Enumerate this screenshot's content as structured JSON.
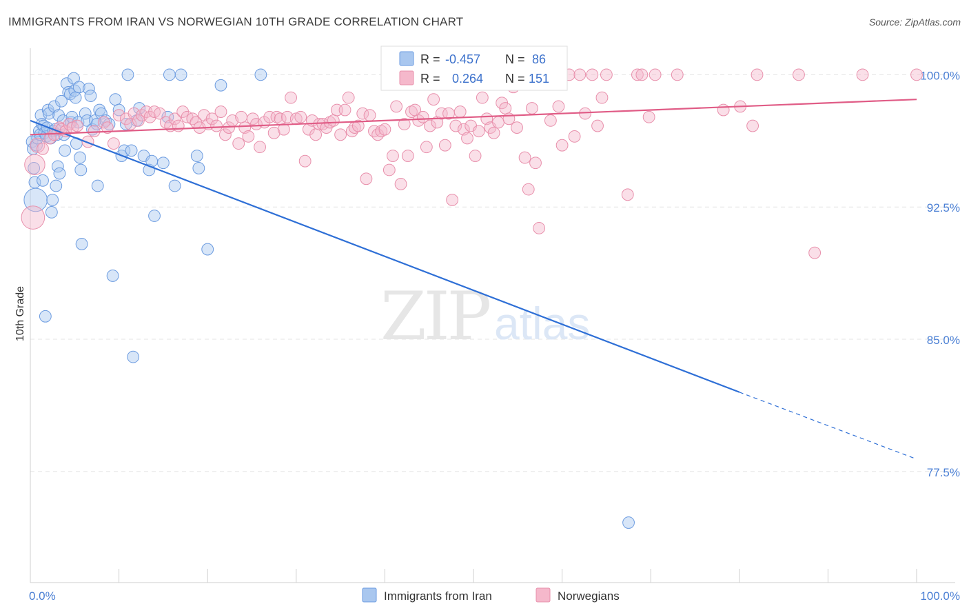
{
  "title": "IMMIGRANTS FROM IRAN VS NORWEGIAN 10TH GRADE CORRELATION CHART",
  "source": "Source: ZipAtlas.com",
  "watermark": {
    "zip": "ZIP",
    "atlas": "atlas"
  },
  "legend": {
    "r_label": "R =",
    "n_label": "N =",
    "series": [
      {
        "name": "Immigrants from Iran",
        "r": "-0.457",
        "n": "86"
      },
      {
        "name": "Norwegians",
        "r": "0.264",
        "n": "151"
      }
    ]
  },
  "colors": {
    "blue_fill": "#a9c7ef",
    "blue_stroke": "#6b9be0",
    "blue_line": "#2e6fd6",
    "pink_fill": "#f5b8cb",
    "pink_stroke": "#e88fab",
    "pink_line": "#e05c86",
    "grid": "#e4e4e4",
    "axis_text": "#4a7fd4"
  },
  "chart_data": {
    "type": "scatter",
    "title": "IMMIGRANTS FROM IRAN VS NORWEGIAN 10TH GRADE CORRELATION CHART",
    "xlabel": "",
    "ylabel": "10th Grade",
    "xlim": [
      0,
      100
    ],
    "ylim": [
      71.2,
      101.5
    ],
    "x_tick_labels": [
      "0.0%",
      "100.0%"
    ],
    "y_ticks": [
      77.5,
      85.0,
      92.5,
      100.0
    ],
    "y_tick_labels": [
      "77.5%",
      "85.0%",
      "92.5%",
      "100.0%"
    ],
    "series": [
      {
        "name": "Immigrants from Iran",
        "color": "blue",
        "trend": {
          "x0": 0,
          "y0": 97.4,
          "x1": 80,
          "y1": 82.0,
          "dash_to_x": 100,
          "dash_to_y": 78.2
        },
        "points": [
          [
            0.2,
            96.2,
            8
          ],
          [
            0.3,
            95.8,
            8
          ],
          [
            0.4,
            94.7,
            8
          ],
          [
            0.5,
            93.9,
            8
          ],
          [
            0.6,
            92.9,
            16
          ],
          [
            0.7,
            96.0,
            8
          ],
          [
            0.8,
            96.4,
            8
          ],
          [
            1.0,
            96.8,
            8
          ],
          [
            1.1,
            96.6,
            8
          ],
          [
            1.2,
            97.7,
            8
          ],
          [
            1.3,
            97.2,
            8
          ],
          [
            1.4,
            94.0,
            8
          ],
          [
            1.5,
            97.1,
            8
          ],
          [
            1.6,
            96.7,
            8
          ],
          [
            1.7,
            86.3,
            8
          ],
          [
            1.8,
            96.5,
            8
          ],
          [
            1.9,
            97.0,
            8
          ],
          [
            2.0,
            98.0,
            8
          ],
          [
            2.1,
            97.8,
            8
          ],
          [
            2.3,
            96.4,
            8
          ],
          [
            2.4,
            92.2,
            8
          ],
          [
            2.5,
            92.9,
            8
          ],
          [
            2.6,
            96.8,
            8
          ],
          [
            2.7,
            98.2,
            8
          ],
          [
            2.8,
            96.9,
            8
          ],
          [
            2.9,
            93.7,
            8
          ],
          [
            3.0,
            96.6,
            8
          ],
          [
            3.1,
            94.8,
            8
          ],
          [
            3.2,
            97.7,
            8
          ],
          [
            3.3,
            94.4,
            8
          ],
          [
            3.5,
            98.5,
            8
          ],
          [
            3.7,
            97.4,
            8
          ],
          [
            3.8,
            96.6,
            8
          ],
          [
            3.9,
            95.7,
            8
          ],
          [
            4.1,
            99.5,
            8
          ],
          [
            4.3,
            99.0,
            8
          ],
          [
            4.5,
            98.9,
            8
          ],
          [
            4.6,
            97.3,
            8
          ],
          [
            4.7,
            97.6,
            8
          ],
          [
            4.9,
            99.8,
            8
          ],
          [
            5.0,
            99.1,
            8
          ],
          [
            5.1,
            98.7,
            8
          ],
          [
            5.2,
            96.1,
            8
          ],
          [
            5.4,
            97.3,
            8
          ],
          [
            5.5,
            99.3,
            8
          ],
          [
            5.6,
            95.3,
            8
          ],
          [
            5.7,
            94.6,
            8
          ],
          [
            5.8,
            90.4,
            8
          ],
          [
            6.2,
            97.8,
            8
          ],
          [
            6.4,
            97.4,
            8
          ],
          [
            6.6,
            99.2,
            8
          ],
          [
            6.8,
            98.8,
            8
          ],
          [
            7.0,
            96.9,
            8
          ],
          [
            7.3,
            97.4,
            8
          ],
          [
            7.5,
            97.2,
            8
          ],
          [
            7.6,
            93.7,
            8
          ],
          [
            7.8,
            98.0,
            8
          ],
          [
            8.0,
            97.8,
            8
          ],
          [
            8.5,
            97.4,
            8
          ],
          [
            8.9,
            97.2,
            8
          ],
          [
            9.3,
            88.6,
            8
          ],
          [
            9.6,
            98.6,
            8
          ],
          [
            10.0,
            98.0,
            8
          ],
          [
            10.3,
            95.4,
            8
          ],
          [
            10.6,
            95.7,
            8
          ],
          [
            10.8,
            97.2,
            8
          ],
          [
            11.0,
            100.0,
            8
          ],
          [
            11.4,
            95.7,
            8
          ],
          [
            11.6,
            84.0,
            8
          ],
          [
            12.0,
            97.4,
            8
          ],
          [
            12.3,
            98.1,
            8
          ],
          [
            12.8,
            95.4,
            8
          ],
          [
            13.4,
            94.6,
            8
          ],
          [
            13.7,
            95.1,
            8
          ],
          [
            14.0,
            92.0,
            8
          ],
          [
            15.0,
            95.0,
            8
          ],
          [
            15.5,
            97.6,
            8
          ],
          [
            15.7,
            100.0,
            8
          ],
          [
            16.3,
            93.7,
            8
          ],
          [
            17.0,
            100.0,
            8
          ],
          [
            18.8,
            95.4,
            8
          ],
          [
            19.0,
            94.7,
            8
          ],
          [
            20.0,
            90.1,
            8
          ],
          [
            21.5,
            99.4,
            8
          ],
          [
            26.0,
            100.0,
            8
          ],
          [
            67.5,
            74.6,
            8
          ]
        ]
      },
      {
        "name": "Norwegians",
        "color": "pink",
        "trend": {
          "x0": 0,
          "y0": 96.6,
          "x1": 100,
          "y1": 98.6
        },
        "points": [
          [
            0.3,
            91.9,
            16
          ],
          [
            0.5,
            94.9,
            14
          ],
          [
            0.8,
            96.0,
            10
          ],
          [
            1.4,
            95.8,
            8
          ],
          [
            2.2,
            96.4,
            8
          ],
          [
            2.7,
            96.6,
            8
          ],
          [
            3.3,
            97.0,
            8
          ],
          [
            3.5,
            96.9,
            8
          ],
          [
            4.0,
            96.8,
            8
          ],
          [
            4.4,
            97.2,
            8
          ],
          [
            4.8,
            97.0,
            8
          ],
          [
            5.3,
            97.1,
            8
          ],
          [
            6.5,
            96.2,
            8
          ],
          [
            7.2,
            96.8,
            8
          ],
          [
            8.3,
            97.3,
            8
          ],
          [
            8.7,
            97.0,
            8
          ],
          [
            9.4,
            96.1,
            8
          ],
          [
            10.0,
            97.7,
            8
          ],
          [
            10.8,
            97.5,
            8
          ],
          [
            11.3,
            97.2,
            8
          ],
          [
            11.7,
            97.8,
            8
          ],
          [
            12.2,
            97.4,
            8
          ],
          [
            12.6,
            97.7,
            8
          ],
          [
            13.1,
            97.9,
            8
          ],
          [
            13.5,
            97.6,
            8
          ],
          [
            14.0,
            97.9,
            8
          ],
          [
            14.6,
            97.8,
            8
          ],
          [
            15.3,
            97.3,
            8
          ],
          [
            15.8,
            97.1,
            8
          ],
          [
            16.3,
            97.5,
            8
          ],
          [
            16.7,
            97.1,
            8
          ],
          [
            17.2,
            97.9,
            8
          ],
          [
            17.7,
            97.6,
            8
          ],
          [
            18.3,
            97.5,
            8
          ],
          [
            18.7,
            97.3,
            8
          ],
          [
            19.1,
            97.0,
            8
          ],
          [
            19.6,
            97.7,
            8
          ],
          [
            20.1,
            97.2,
            8
          ],
          [
            20.5,
            97.5,
            8
          ],
          [
            21.0,
            97.1,
            8
          ],
          [
            21.5,
            97.9,
            8
          ],
          [
            22.0,
            96.6,
            8
          ],
          [
            22.4,
            97.0,
            8
          ],
          [
            22.8,
            97.4,
            8
          ],
          [
            23.5,
            96.1,
            8
          ],
          [
            23.8,
            97.6,
            8
          ],
          [
            24.2,
            97.0,
            8
          ],
          [
            24.6,
            96.5,
            8
          ],
          [
            25.1,
            97.5,
            8
          ],
          [
            25.5,
            97.2,
            8
          ],
          [
            25.9,
            95.9,
            8
          ],
          [
            26.4,
            97.3,
            8
          ],
          [
            27.0,
            97.6,
            8
          ],
          [
            27.5,
            96.7,
            8
          ],
          [
            27.8,
            97.6,
            8
          ],
          [
            28.2,
            97.5,
            8
          ],
          [
            28.6,
            96.9,
            8
          ],
          [
            29.0,
            97.6,
            8
          ],
          [
            29.4,
            98.7,
            8
          ],
          [
            30.0,
            97.5,
            8
          ],
          [
            30.5,
            97.6,
            8
          ],
          [
            31.0,
            95.1,
            8
          ],
          [
            31.4,
            96.9,
            8
          ],
          [
            31.8,
            97.4,
            8
          ],
          [
            32.2,
            96.6,
            8
          ],
          [
            32.6,
            97.2,
            8
          ],
          [
            33.0,
            97.2,
            8
          ],
          [
            33.4,
            97.0,
            8
          ],
          [
            33.8,
            97.3,
            8
          ],
          [
            34.2,
            97.4,
            8
          ],
          [
            34.6,
            98.0,
            8
          ],
          [
            35.0,
            96.6,
            8
          ],
          [
            35.5,
            98.0,
            8
          ],
          [
            35.9,
            98.7,
            8
          ],
          [
            36.3,
            96.8,
            8
          ],
          [
            36.6,
            97.0,
            8
          ],
          [
            37.0,
            97.1,
            8
          ],
          [
            37.5,
            97.8,
            8
          ],
          [
            37.9,
            94.1,
            8
          ],
          [
            38.3,
            97.7,
            8
          ],
          [
            38.8,
            96.8,
            8
          ],
          [
            39.2,
            96.6,
            8
          ],
          [
            39.6,
            96.8,
            8
          ],
          [
            40.0,
            96.9,
            8
          ],
          [
            40.5,
            94.6,
            8
          ],
          [
            40.9,
            95.4,
            8
          ],
          [
            41.3,
            98.2,
            8
          ],
          [
            41.8,
            93.8,
            8
          ],
          [
            42.2,
            97.2,
            8
          ],
          [
            42.6,
            95.4,
            8
          ],
          [
            43.0,
            97.9,
            8
          ],
          [
            43.4,
            98.0,
            8
          ],
          [
            43.8,
            97.4,
            8
          ],
          [
            44.3,
            97.6,
            8
          ],
          [
            44.7,
            95.9,
            8
          ],
          [
            45.1,
            97.1,
            8
          ],
          [
            45.5,
            98.6,
            8
          ],
          [
            45.9,
            97.3,
            8
          ],
          [
            46.4,
            97.8,
            8
          ],
          [
            46.8,
            96.0,
            8
          ],
          [
            47.2,
            97.8,
            8
          ],
          [
            47.6,
            92.9,
            8
          ],
          [
            48.0,
            97.1,
            8
          ],
          [
            48.5,
            97.9,
            8
          ],
          [
            48.9,
            96.9,
            8
          ],
          [
            49.3,
            96.4,
            8
          ],
          [
            49.7,
            97.1,
            8
          ],
          [
            50.2,
            95.4,
            8
          ],
          [
            50.6,
            96.8,
            8
          ],
          [
            51.0,
            98.7,
            8
          ],
          [
            51.5,
            97.5,
            8
          ],
          [
            51.9,
            97.0,
            8
          ],
          [
            52.3,
            96.7,
            8
          ],
          [
            52.8,
            97.3,
            8
          ],
          [
            53.2,
            98.4,
            8
          ],
          [
            53.6,
            98.1,
            8
          ],
          [
            54.0,
            97.5,
            8
          ],
          [
            54.5,
            99.3,
            8
          ],
          [
            54.9,
            97.0,
            8
          ],
          [
            55.3,
            100.0,
            8
          ],
          [
            55.8,
            95.3,
            8
          ],
          [
            56.2,
            93.5,
            8
          ],
          [
            56.6,
            98.1,
            8
          ],
          [
            57.0,
            95.0,
            8
          ],
          [
            57.4,
            91.3,
            8
          ],
          [
            57.9,
            100.0,
            8
          ],
          [
            58.3,
            100.0,
            8
          ],
          [
            58.7,
            97.4,
            8
          ],
          [
            59.1,
            100.0,
            8
          ],
          [
            59.6,
            98.2,
            8
          ],
          [
            60.0,
            96.0,
            8
          ],
          [
            60.8,
            100.0,
            8
          ],
          [
            61.4,
            96.5,
            8
          ],
          [
            62.0,
            100.0,
            8
          ],
          [
            62.6,
            97.8,
            8
          ],
          [
            63.4,
            100.0,
            8
          ],
          [
            64.0,
            97.1,
            8
          ],
          [
            64.5,
            98.7,
            8
          ],
          [
            65.0,
            100.0,
            8
          ],
          [
            67.4,
            93.2,
            8
          ],
          [
            68.5,
            100.0,
            8
          ],
          [
            69.0,
            100.0,
            8
          ],
          [
            69.8,
            97.6,
            8
          ],
          [
            70.5,
            100.0,
            8
          ],
          [
            73.0,
            100.0,
            8
          ],
          [
            78.2,
            98.0,
            8
          ],
          [
            80.1,
            98.2,
            8
          ],
          [
            81.5,
            97.1,
            8
          ],
          [
            82.0,
            100.0,
            8
          ],
          [
            86.7,
            100.0,
            8
          ],
          [
            88.5,
            89.9,
            8
          ],
          [
            93.9,
            100.0,
            8
          ],
          [
            100.0,
            100.0,
            8
          ]
        ]
      }
    ]
  }
}
